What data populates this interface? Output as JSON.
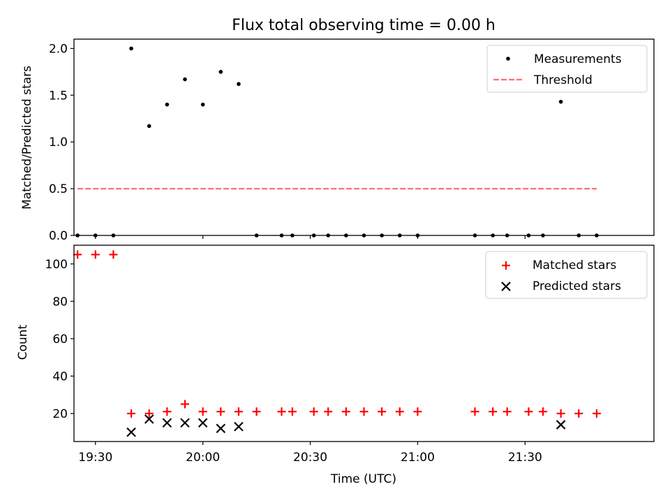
{
  "chart_data": [
    {
      "type": "scatter",
      "title": "Flux total observing time = 0.00 h",
      "xlabel": "",
      "ylabel": "Matched/Predicted stars",
      "ylim": [
        0,
        2.1
      ],
      "yticks": [
        "0.0",
        "0.5",
        "1.0",
        "1.5",
        "2.0"
      ],
      "xlim_minutes": [
        1164,
        1326
      ],
      "legend": "top-right",
      "series": [
        {
          "name": "Measurements",
          "color": "#000000",
          "x": [
            "19:25",
            "19:30",
            "19:35",
            "19:40",
            "19:45",
            "19:50",
            "19:55",
            "20:00",
            "20:05",
            "20:10",
            "20:15",
            "20:22",
            "20:25",
            "20:31",
            "20:35",
            "20:40",
            "20:45",
            "20:50",
            "20:55",
            "21:00",
            "21:16",
            "21:21",
            "21:25",
            "21:31",
            "21:35",
            "21:40",
            "21:45",
            "21:50"
          ],
          "y": [
            0,
            0,
            0,
            2.0,
            1.17,
            1.4,
            1.67,
            1.4,
            1.75,
            1.62,
            0,
            0,
            0,
            0,
            0,
            0,
            0,
            0,
            0,
            0,
            0,
            0,
            0,
            0,
            0,
            1.43,
            0,
            0
          ]
        },
        {
          "name": "Threshold",
          "color": "#ff7070",
          "style": "dashed",
          "x": [
            "19:25",
            "21:50"
          ],
          "y": [
            0.5,
            0.5
          ]
        }
      ]
    },
    {
      "type": "scatter",
      "title": "",
      "xlabel": "Time (UTC)",
      "ylabel": "Count",
      "ylim": [
        5,
        110
      ],
      "yticks": [
        "20",
        "40",
        "60",
        "80",
        "100"
      ],
      "xticks": [
        "19:30",
        "20:00",
        "20:30",
        "21:00",
        "21:30"
      ],
      "xlim_minutes": [
        1164,
        1326
      ],
      "legend": "top-right",
      "series": [
        {
          "name": "Matched stars",
          "color": "#ff0000",
          "marker": "+",
          "x": [
            "19:25",
            "19:30",
            "19:35",
            "19:40",
            "19:45",
            "19:50",
            "19:55",
            "20:00",
            "20:05",
            "20:10",
            "20:15",
            "20:22",
            "20:25",
            "20:31",
            "20:35",
            "20:40",
            "20:45",
            "20:50",
            "20:55",
            "21:00",
            "21:16",
            "21:21",
            "21:25",
            "21:31",
            "21:35",
            "21:40",
            "21:45",
            "21:50"
          ],
          "y": [
            105,
            105,
            105,
            20,
            20,
            21,
            25,
            21,
            21,
            21,
            21,
            21,
            21,
            21,
            21,
            21,
            21,
            21,
            21,
            21,
            21,
            21,
            21,
            21,
            21,
            20,
            20,
            20
          ]
        },
        {
          "name": "Predicted stars",
          "color": "#000000",
          "marker": "x",
          "x": [
            "19:40",
            "19:45",
            "19:50",
            "19:55",
            "20:00",
            "20:05",
            "20:10",
            "21:40"
          ],
          "y": [
            10,
            17,
            15,
            15,
            15,
            12,
            13,
            14
          ]
        }
      ]
    }
  ]
}
